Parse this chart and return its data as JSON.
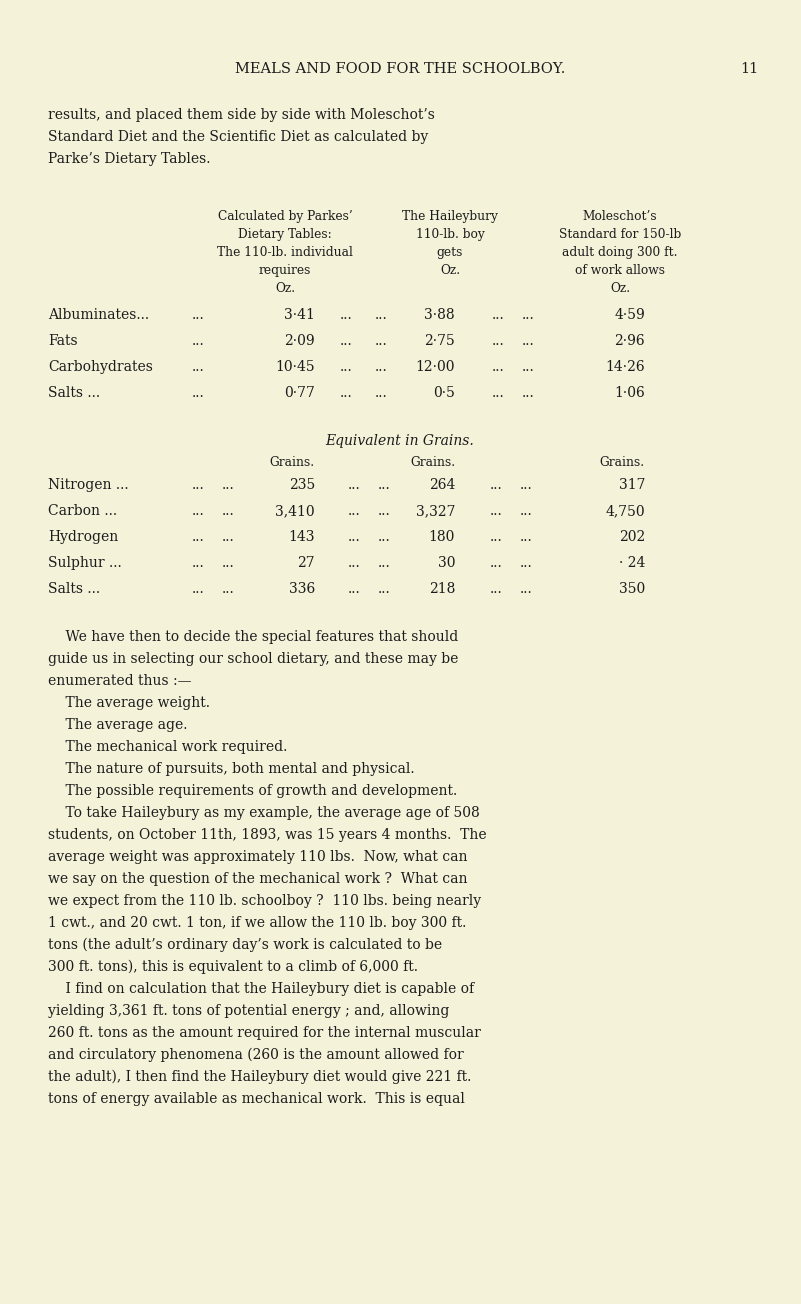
{
  "bg_color": "#f5f2da",
  "text_color": "#1c1c1c",
  "page_width": 8.01,
  "page_height": 13.04,
  "dpi": 100,
  "header_title": "MEALS AND FOOD FOR THE SCHOOLBOY.",
  "header_page_num": "11",
  "intro_lines": [
    "results, and placed them side by side with Moleschot’s",
    "Standard Diet and the Scientific Diet as calculated by",
    "Parke’s Dietary Tables."
  ],
  "col1_lines": [
    "Calculated by Parkes’",
    "Dietary Tables:",
    "The 110-lb. individual",
    "requires",
    "Oz."
  ],
  "col2_lines": [
    "The Haileybury",
    "110-lb. boy",
    "gets",
    "Oz."
  ],
  "col3_lines": [
    "Moleschot’s",
    "Standard for 150-lb",
    "adult doing 300 ft.",
    "of work allows",
    "Oz."
  ],
  "oz_rows": [
    {
      "label": "Albuminates...",
      "d1": "...",
      "v1": "3·41",
      "d2": "...",
      "d3": "...",
      "v2": "3·88",
      "d4": "...",
      "d5": "...",
      "v3": "4·59"
    },
    {
      "label": "Fats",
      "d1": "...",
      "v1": "2·09",
      "d2": "...",
      "d3": "...",
      "v2": "2·75",
      "d4": "...",
      "d5": "...",
      "v3": "2·96"
    },
    {
      "label": "Carbohydrates",
      "d1": "...",
      "v1": "10·45",
      "d2": "...",
      "d3": "...",
      "v2": "12·00",
      "d4": "...",
      "d5": "...",
      "v3": "14·26"
    },
    {
      "label": "Salts ...",
      "d1": "...",
      "v1": "0·77",
      "d2": "...",
      "d3": "...",
      "v2": "0·5",
      "d4": "...",
      "d5": "...",
      "v3": "1·06"
    }
  ],
  "equiv_title": "Equivalent in Grains.",
  "grains_col_labels": [
    "Grains.",
    "Grains.",
    "Grains."
  ],
  "grains_rows": [
    {
      "label": "Nitrogen ...",
      "d1": "...",
      "d2": "...",
      "v1": "235",
      "d3": "...",
      "d4": "...",
      "v2": "264",
      "d5": "...",
      "d6": "...",
      "v3": "317"
    },
    {
      "label": "Carbon ...",
      "d1": "...",
      "d2": "...",
      "v1": "3,410",
      "d3": "...",
      "d4": "...",
      "v2": "3,327",
      "d5": "...",
      "d6": "...",
      "v3": "4,750"
    },
    {
      "label": "Hydrogen",
      "d1": "...",
      "d2": "...",
      "v1": "143",
      "d3": "...",
      "d4": "...",
      "v2": "180",
      "d5": "...",
      "d6": "...",
      "v3": "202"
    },
    {
      "label": "Sulphur ...",
      "d1": "...",
      "d2": "...",
      "v1": "27",
      "d3": "...",
      "d4": "...",
      "v2": "30",
      "d5": "...",
      "d6": "...",
      "v3": "· 24"
    },
    {
      "label": "Salts ...",
      "d1": "...",
      "d2": "...",
      "v1": "336",
      "d3": "...",
      "d4": "...",
      "v2": "218",
      "d5": "...",
      "d6": "...",
      "v3": "350"
    }
  ],
  "body_text": [
    [
      "    We have then to decide the special features that should",
      false
    ],
    [
      "guide us in selecting our school dietary, and these may be",
      false
    ],
    [
      "enumerated thus :—",
      false
    ],
    [
      "    The average weight.",
      true
    ],
    [
      "    The average age.",
      true
    ],
    [
      "    The mechanical work required.",
      true
    ],
    [
      "    The nature of pursuits, both mental and physical.",
      true
    ],
    [
      "    The possible requirements of growth and development.",
      true
    ],
    [
      "    To take Haileybury as my example, the average age of 508",
      false
    ],
    [
      "students, on October 11th, 1893, was 15 years 4 months.  The",
      false
    ],
    [
      "average weight was approximately 110 lbs.  Now, what can",
      false
    ],
    [
      "we say on the question of the mechanical work ?  What can",
      false
    ],
    [
      "we expect from the 110 lb. schoolboy ?  110 lbs. being nearly",
      false
    ],
    [
      "1 cwt., and 20 cwt. 1 ton, if we allow the 110 lb. boy 300 ft.",
      false
    ],
    [
      "tons (the adult’s ordinary day’s work is calculated to be",
      false
    ],
    [
      "300 ft. tons), this is equivalent to a climb of 6,000 ft.",
      false
    ],
    [
      "    I find on calculation that the Haileybury diet is capable of",
      false
    ],
    [
      "yielding 3,361 ft. tons of potential energy ; and, allowing",
      false
    ],
    [
      "260 ft. tons as the amount required for the internal muscular",
      false
    ],
    [
      "and circulatory phenomena (260 is the amount allowed for",
      false
    ],
    [
      "the adult), I then find the Haileybury diet would give 221 ft.",
      false
    ],
    [
      "tons of energy available as mechanical work.  This is equal",
      false
    ]
  ]
}
